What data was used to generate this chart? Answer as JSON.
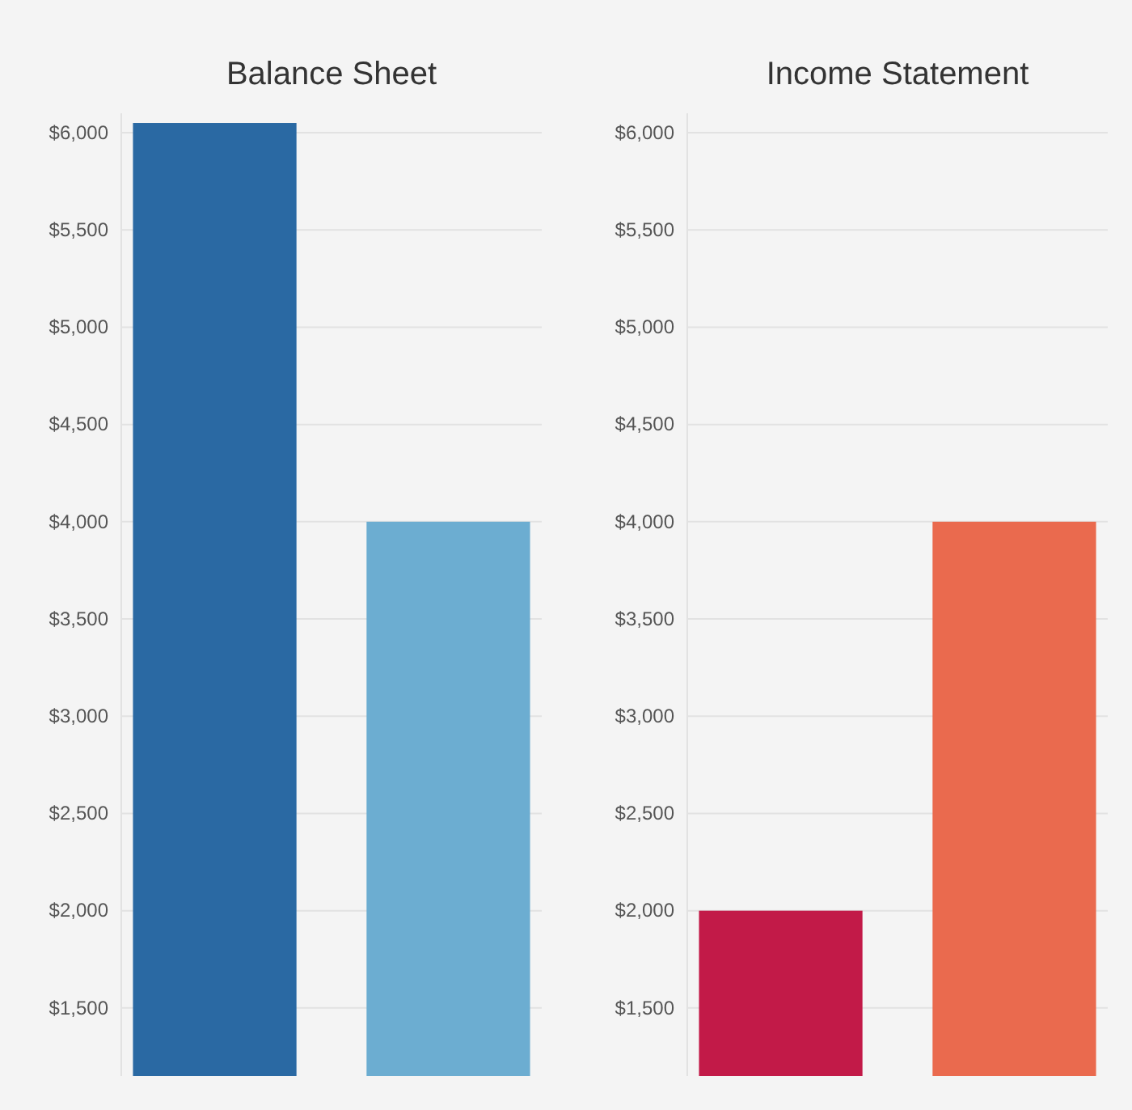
{
  "chart_data": [
    {
      "type": "bar",
      "title": "Balance Sheet",
      "categories": [
        null,
        null
      ],
      "values": [
        6050,
        4000
      ],
      "colors": [
        "#2a69a3",
        "#6cadd1"
      ],
      "ylim": [
        1150,
        6100
      ],
      "yticks": [
        {
          "value": 1500,
          "label": "$1,500"
        },
        {
          "value": 2000,
          "label": "$2,000"
        },
        {
          "value": 2500,
          "label": "$2,500"
        },
        {
          "value": 3000,
          "label": "$3,000"
        },
        {
          "value": 3500,
          "label": "$3,500"
        },
        {
          "value": 4000,
          "label": "$4,000"
        },
        {
          "value": 4500,
          "label": "$4,500"
        },
        {
          "value": 5000,
          "label": "$5,000"
        },
        {
          "value": 5500,
          "label": "$5,500"
        },
        {
          "value": 6000,
          "label": "$6,000"
        }
      ],
      "grid": "y"
    },
    {
      "type": "bar",
      "title": "Income Statement",
      "categories": [
        null,
        null
      ],
      "values": [
        2000,
        4000
      ],
      "colors": [
        "#c21a48",
        "#ea6a4e"
      ],
      "ylim": [
        1150,
        6100
      ],
      "yticks": [
        {
          "value": 1500,
          "label": "$1,500"
        },
        {
          "value": 2000,
          "label": "$2,000"
        },
        {
          "value": 2500,
          "label": "$2,500"
        },
        {
          "value": 3000,
          "label": "$3,000"
        },
        {
          "value": 3500,
          "label": "$3,500"
        },
        {
          "value": 4000,
          "label": "$4,000"
        },
        {
          "value": 4500,
          "label": "$4,500"
        },
        {
          "value": 5000,
          "label": "$5,000"
        },
        {
          "value": 5500,
          "label": "$5,500"
        },
        {
          "value": 6000,
          "label": "$6,000"
        }
      ],
      "grid": "y"
    }
  ]
}
